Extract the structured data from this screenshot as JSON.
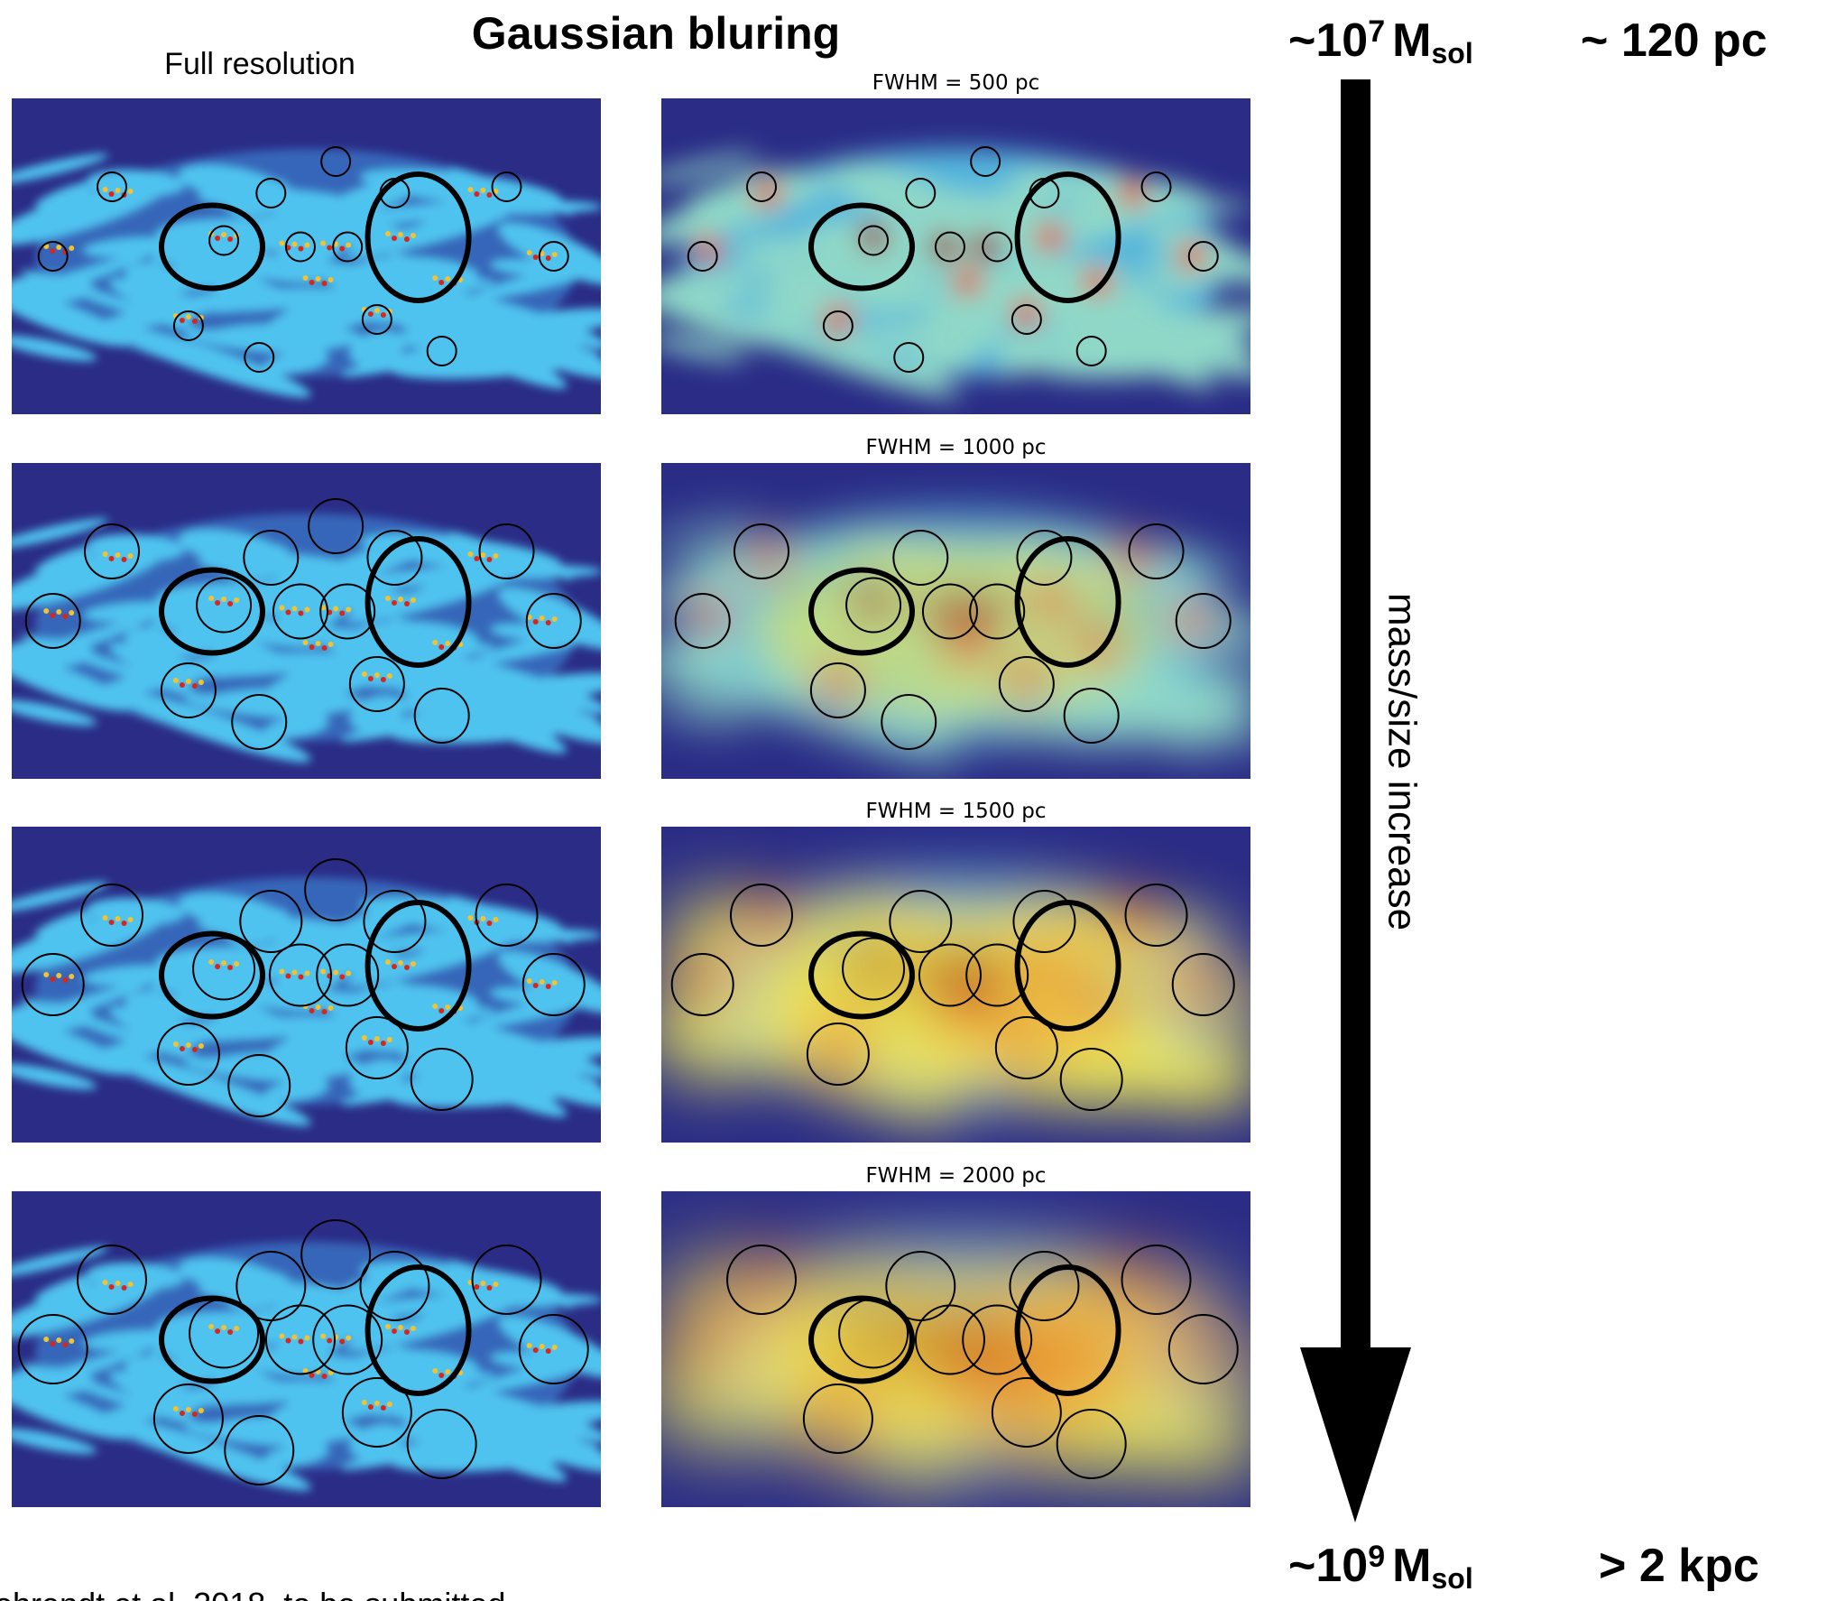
{
  "header": {
    "title": "Gaussian bluring",
    "left_column_label": "Full resolution"
  },
  "panels": [
    {
      "label": "FWHM = 500 pc"
    },
    {
      "label": "FWHM = 1000 pc"
    },
    {
      "label": "FWHM = 1500 pc"
    },
    {
      "label": "FWHM = 2000 pc"
    }
  ],
  "scale": {
    "top": {
      "mass_prefix": "~10",
      "mass_exponent": "7",
      "mass_unit": "M",
      "mass_unit_subscript": "sol",
      "size": "~ 120 pc"
    },
    "axis_label": "mass/size increase",
    "bottom": {
      "mass_prefix": "~10",
      "mass_exponent": "9",
      "mass_unit": "M",
      "mass_unit_subscript": "sol",
      "size": "> 2 kpc"
    }
  },
  "footer": {
    "citation": "ehrendt et al. 2018, to be submitted"
  }
}
